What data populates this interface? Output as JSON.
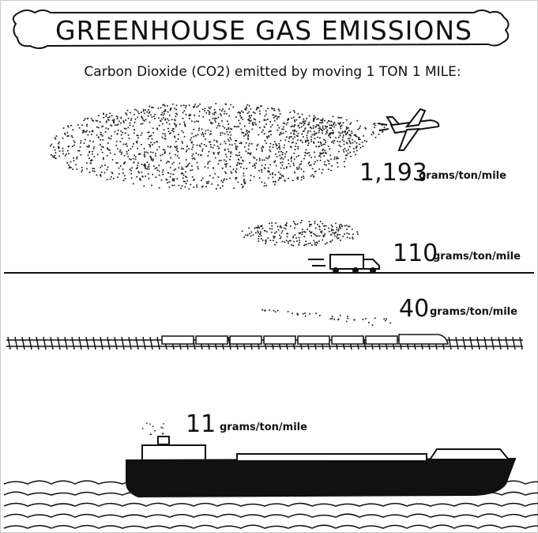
{
  "header": {
    "title": "GREENHOUSE GAS EMISSIONS",
    "subtitle": "Carbon Dioxide (CO2) emitted by moving 1 TON 1 MILE:"
  },
  "items": [
    {
      "value": "1,193",
      "unit": "grams/ton/mile"
    },
    {
      "value": "110",
      "unit": "grams/ton/mile"
    },
    {
      "value": "40",
      "unit": "grams/ton/mile"
    },
    {
      "value": "11",
      "unit": "grams/ton/mile"
    }
  ]
}
